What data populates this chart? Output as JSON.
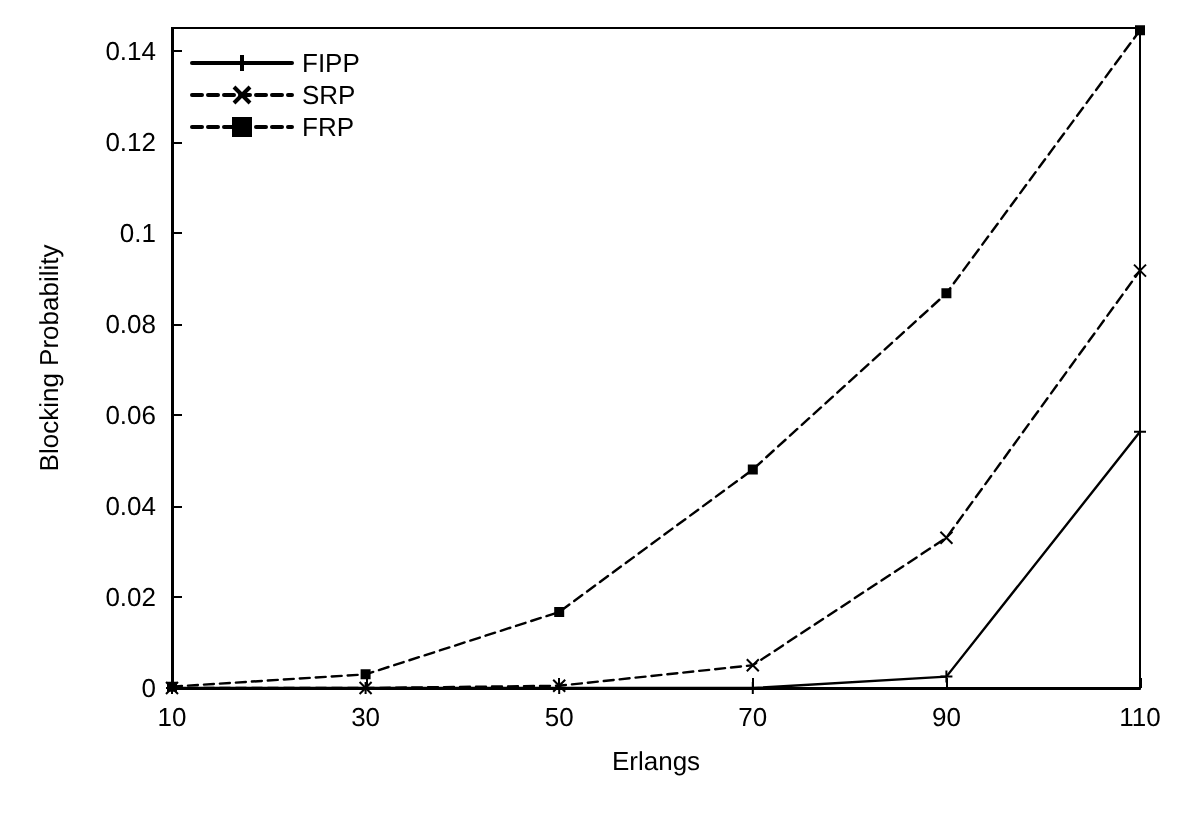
{
  "chart_data": {
    "type": "line",
    "xlabel": "Erlangs",
    "ylabel": "Blocking Probability",
    "x": [
      10,
      30,
      50,
      70,
      90,
      110
    ],
    "series": [
      {
        "name": "FIPP",
        "color": "#000000",
        "line_style": "solid",
        "marker": "plus",
        "values": [
          0,
          0,
          0,
          0,
          0.0025,
          0.0563
        ]
      },
      {
        "name": "SRP",
        "color": "#000000",
        "line_style": "dashed",
        "marker": "cross",
        "values": [
          0,
          0,
          0.0005,
          0.005,
          0.033,
          0.0917
        ]
      },
      {
        "name": "FRP",
        "color": "#000000",
        "line_style": "dashed",
        "marker": "square",
        "values": [
          0.0003,
          0.003,
          0.0167,
          0.048,
          0.0867,
          0.1445
        ]
      }
    ],
    "xlim": [
      10,
      110
    ],
    "xticks": [
      10,
      30,
      50,
      70,
      90,
      110
    ],
    "ylim": [
      0,
      0.145
    ],
    "yticks": [
      0,
      0.02,
      0.04,
      0.06,
      0.08,
      0.1,
      0.12,
      0.14
    ],
    "grid": false,
    "legend": "top left"
  }
}
